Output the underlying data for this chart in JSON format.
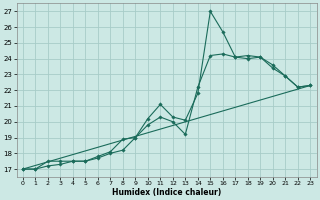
{
  "xlabel": "Humidex (Indice chaleur)",
  "xlim": [
    -0.5,
    23.5
  ],
  "ylim": [
    16.5,
    27.5
  ],
  "xticks": [
    0,
    1,
    2,
    3,
    4,
    5,
    6,
    7,
    8,
    9,
    10,
    11,
    12,
    13,
    14,
    15,
    16,
    17,
    18,
    19,
    20,
    21,
    22,
    23
  ],
  "yticks": [
    17,
    18,
    19,
    20,
    21,
    22,
    23,
    24,
    25,
    26,
    27
  ],
  "bg_color": "#cce8e4",
  "grid_color": "#a8ccc8",
  "line_color": "#1a6b5a",
  "line1_x": [
    0,
    1,
    2,
    3,
    4,
    5,
    6,
    7,
    8,
    9,
    10,
    11,
    12,
    13,
    14,
    15,
    16,
    17,
    18,
    19,
    20,
    21,
    22,
    23
  ],
  "line1_y": [
    17.0,
    17.0,
    17.5,
    17.5,
    17.5,
    17.5,
    17.7,
    18.0,
    18.2,
    19.0,
    20.2,
    21.1,
    20.3,
    20.1,
    21.8,
    27.0,
    25.7,
    24.1,
    24.2,
    24.1,
    23.6,
    22.9,
    22.2,
    22.3
  ],
  "line2_x": [
    0,
    1,
    2,
    3,
    4,
    5,
    6,
    7,
    8,
    9,
    10,
    11,
    12,
    13,
    14,
    15,
    16,
    17,
    18,
    19,
    20,
    21,
    22,
    23
  ],
  "line2_y": [
    17.0,
    17.0,
    17.2,
    17.3,
    17.5,
    17.5,
    17.8,
    18.1,
    18.9,
    19.0,
    19.8,
    20.3,
    20.0,
    19.2,
    22.2,
    24.2,
    24.3,
    24.1,
    24.0,
    24.1,
    23.4,
    22.9,
    22.2,
    22.3
  ],
  "line3_x": [
    0,
    23
  ],
  "line3_y": [
    17.0,
    22.3
  ]
}
